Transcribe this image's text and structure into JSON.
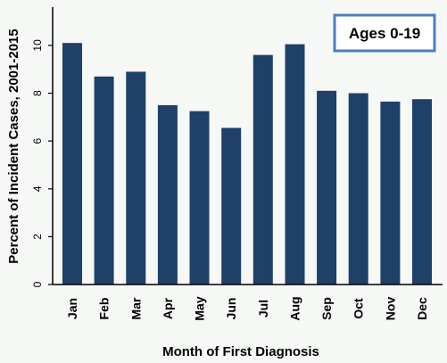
{
  "chart_data": {
    "type": "bar",
    "title": "",
    "annotation": "Ages 0-19",
    "xlabel": "Month of First Diagnosis",
    "ylabel": "Percent of Incident Cases, 2001-2015",
    "ylim": [
      0,
      11.6
    ],
    "yticks": [
      0,
      2,
      4,
      6,
      8,
      10
    ],
    "grid": false,
    "categories": [
      "Jan",
      "Feb",
      "Mar",
      "Apr",
      "May",
      "Jun",
      "Jul",
      "Aug",
      "Sep",
      "Oct",
      "Nov",
      "Dec"
    ],
    "values": [
      10.1,
      8.7,
      8.9,
      7.5,
      7.25,
      6.55,
      9.6,
      10.05,
      8.1,
      8.0,
      7.65,
      7.75
    ],
    "bar_color": "#1f4068"
  }
}
